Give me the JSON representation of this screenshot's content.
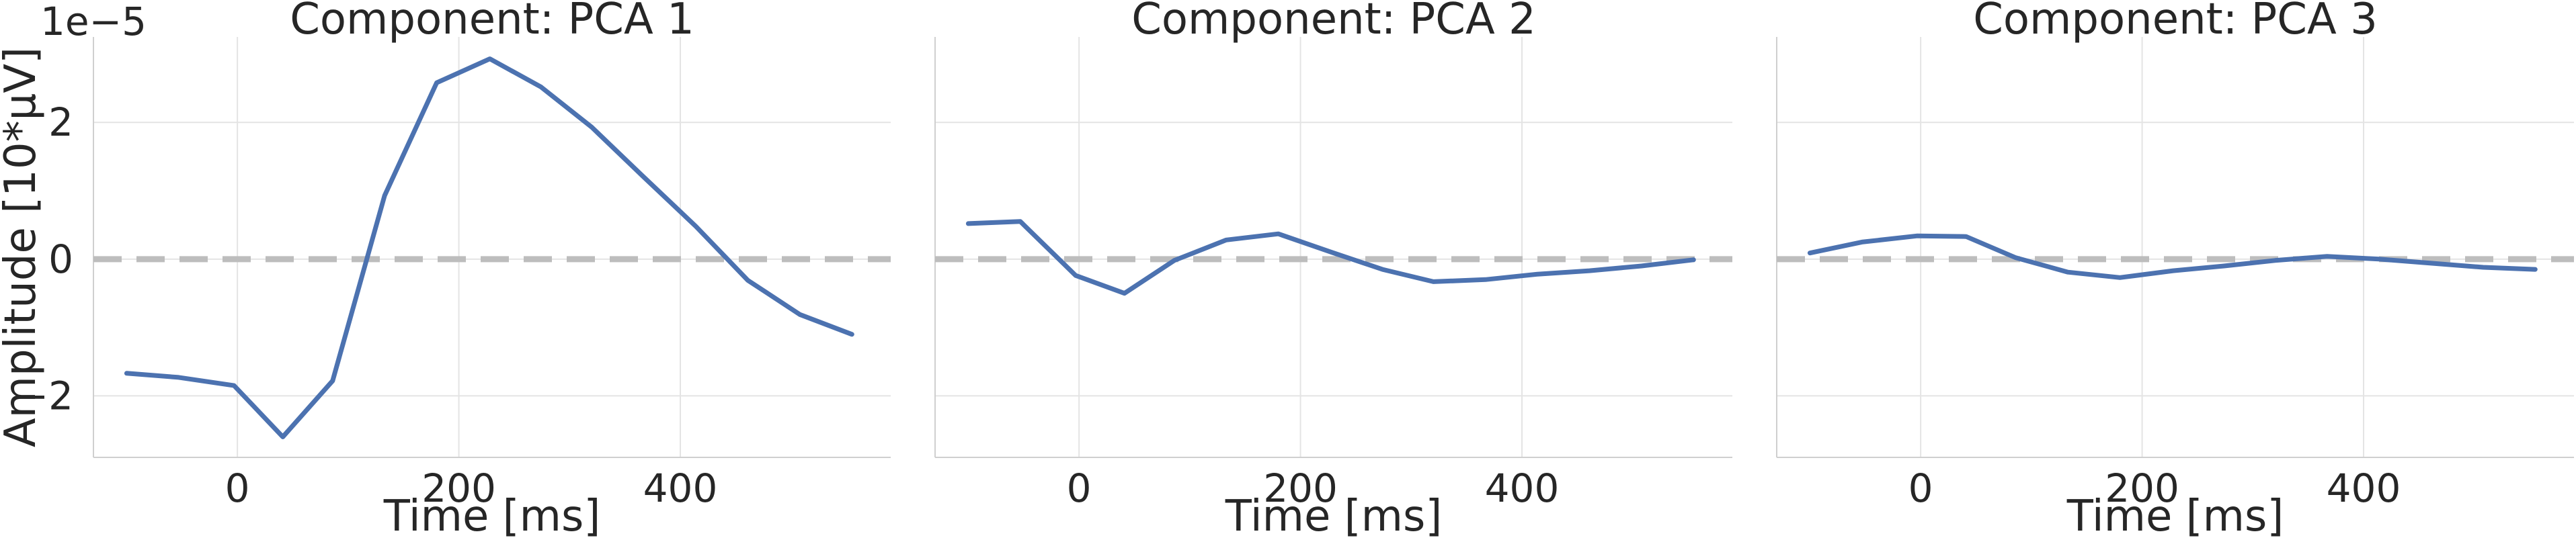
{
  "chart_data": [
    {
      "type": "line",
      "title": "Component: PCA 1",
      "xlabel": "Time [ms]",
      "ylabel": "Amplitude [10*µV]",
      "y_offset_label": "1e−5",
      "xlim": [
        -130,
        590
      ],
      "ylim": [
        -2.9e-05,
        3.25e-05
      ],
      "x_ticks": [
        0,
        200,
        400
      ],
      "x_tick_labels": [
        "0",
        "200",
        "400"
      ],
      "y_ticks": [
        -2e-05,
        0,
        2e-05
      ],
      "y_tick_labels": [
        "−2",
        "0",
        "2"
      ],
      "grid": true,
      "reference_line": 0,
      "x": [
        -100,
        -53,
        -3,
        41,
        86,
        133,
        180,
        228,
        274,
        320,
        367,
        414,
        461,
        508,
        555
      ],
      "values": [
        -1.67e-05,
        -1.73e-05,
        -1.85e-05,
        -2.6e-05,
        -1.78e-05,
        9.3e-06,
        2.58e-05,
        2.93e-05,
        2.52e-05,
        1.93e-05,
        1.2e-05,
        4.8e-06,
        -3.1e-06,
        -8.1e-06,
        -1.1e-05
      ]
    },
    {
      "type": "line",
      "title": "Component: PCA 2",
      "xlabel": "Time [ms]",
      "ylabel": "",
      "xlim": [
        -130,
        590
      ],
      "ylim": [
        -2.9e-05,
        3.25e-05
      ],
      "x_ticks": [
        0,
        200,
        400
      ],
      "x_tick_labels": [
        "0",
        "200",
        "400"
      ],
      "y_ticks": [
        -2e-05,
        0,
        2e-05
      ],
      "grid": true,
      "reference_line": 0,
      "x": [
        -100,
        -53,
        -3,
        41,
        86,
        133,
        180,
        228,
        274,
        320,
        367,
        414,
        461,
        508,
        555
      ],
      "values": [
        5.2e-06,
        5.5e-06,
        -2.4e-06,
        -5e-06,
        -2e-07,
        2.8e-06,
        3.7e-06,
        1e-06,
        -1.5e-06,
        -3.3e-06,
        -3e-06,
        -2.2e-06,
        -1.7e-06,
        -1e-06,
        -1e-07
      ]
    },
    {
      "type": "line",
      "title": "Component: PCA 3",
      "xlabel": "Time [ms]",
      "ylabel": "",
      "xlim": [
        -130,
        590
      ],
      "ylim": [
        -2.9e-05,
        3.25e-05
      ],
      "x_ticks": [
        0,
        200,
        400
      ],
      "x_tick_labels": [
        "0",
        "200",
        "400"
      ],
      "y_ticks": [
        -2e-05,
        0,
        2e-05
      ],
      "grid": true,
      "reference_line": 0,
      "x": [
        -100,
        -53,
        -3,
        41,
        86,
        133,
        180,
        228,
        274,
        320,
        367,
        414,
        461,
        508,
        555
      ],
      "values": [
        9e-07,
        2.5e-06,
        3.4e-06,
        3.3e-06,
        2e-07,
        -1.9e-06,
        -2.7e-06,
        -1.7e-06,
        -1e-06,
        -2e-07,
        4e-07,
        0.0,
        -6e-07,
        -1.2e-06,
        -1.5e-06
      ]
    }
  ]
}
